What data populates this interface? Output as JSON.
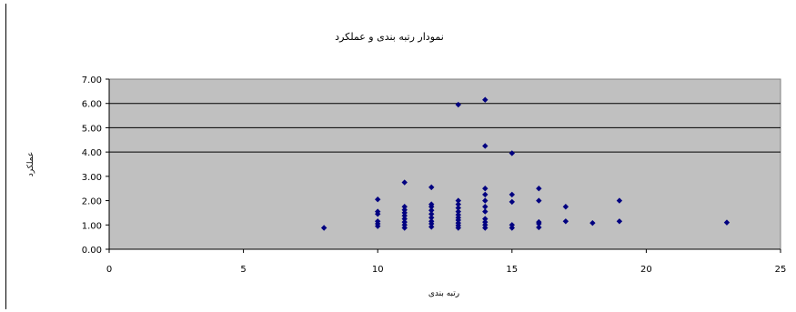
{
  "chart_data": {
    "type": "scatter",
    "title": "نمودار رتبه بندی و عملکرد",
    "xlabel": "رتبه بندی",
    "ylabel": "عملکرد",
    "xlim": [
      0,
      25
    ],
    "ylim": [
      0,
      7
    ],
    "x_ticks": [
      "0",
      "5",
      "10",
      "15",
      "20",
      "25"
    ],
    "y_ticks": [
      "0.00",
      "1.00",
      "2.00",
      "3.00",
      "4.00",
      "5.00",
      "6.00",
      "7.00"
    ],
    "grid": "horizontal lines at 4.00, 5.00 and 6.00",
    "plot_background": "#c0c0c0",
    "marker_color": "#000080",
    "series": [
      {
        "points": [
          [
            8,
            0.88
          ],
          [
            10,
            0.95
          ],
          [
            10,
            1.05
          ],
          [
            10,
            1.15
          ],
          [
            10,
            1.45
          ],
          [
            10,
            1.55
          ],
          [
            10,
            2.05
          ],
          [
            11,
            0.88
          ],
          [
            11,
            1.0
          ],
          [
            11,
            1.12
          ],
          [
            11,
            1.25
          ],
          [
            11,
            1.38
          ],
          [
            11,
            1.5
          ],
          [
            11,
            1.62
          ],
          [
            11,
            1.75
          ],
          [
            11,
            2.75
          ],
          [
            12,
            0.92
          ],
          [
            12,
            1.05
          ],
          [
            12,
            1.15
          ],
          [
            12,
            1.3
          ],
          [
            12,
            1.45
          ],
          [
            12,
            1.6
          ],
          [
            12,
            1.75
          ],
          [
            12,
            1.85
          ],
          [
            12,
            2.55
          ],
          [
            13,
            0.88
          ],
          [
            13,
            0.98
          ],
          [
            13,
            1.08
          ],
          [
            13,
            1.2
          ],
          [
            13,
            1.3
          ],
          [
            13,
            1.42
          ],
          [
            13,
            1.55
          ],
          [
            13,
            1.7
          ],
          [
            13,
            1.85
          ],
          [
            13,
            2.0
          ],
          [
            13,
            5.95
          ],
          [
            14,
            0.88
          ],
          [
            14,
            1.0
          ],
          [
            14,
            1.12
          ],
          [
            14,
            1.25
          ],
          [
            14,
            1.55
          ],
          [
            14,
            1.75
          ],
          [
            14,
            2.0
          ],
          [
            14,
            2.25
          ],
          [
            14,
            2.5
          ],
          [
            14,
            4.25
          ],
          [
            14,
            6.15
          ],
          [
            15,
            0.88
          ],
          [
            15,
            1.0
          ],
          [
            15,
            1.95
          ],
          [
            15,
            2.25
          ],
          [
            15,
            3.95
          ],
          [
            16,
            0.9
          ],
          [
            16,
            1.05
          ],
          [
            16,
            1.12
          ],
          [
            16,
            2.0
          ],
          [
            16,
            2.5
          ],
          [
            17,
            1.15
          ],
          [
            17,
            1.75
          ],
          [
            18,
            1.08
          ],
          [
            19,
            1.15
          ],
          [
            19,
            2.0
          ],
          [
            23,
            1.1
          ]
        ]
      }
    ]
  }
}
